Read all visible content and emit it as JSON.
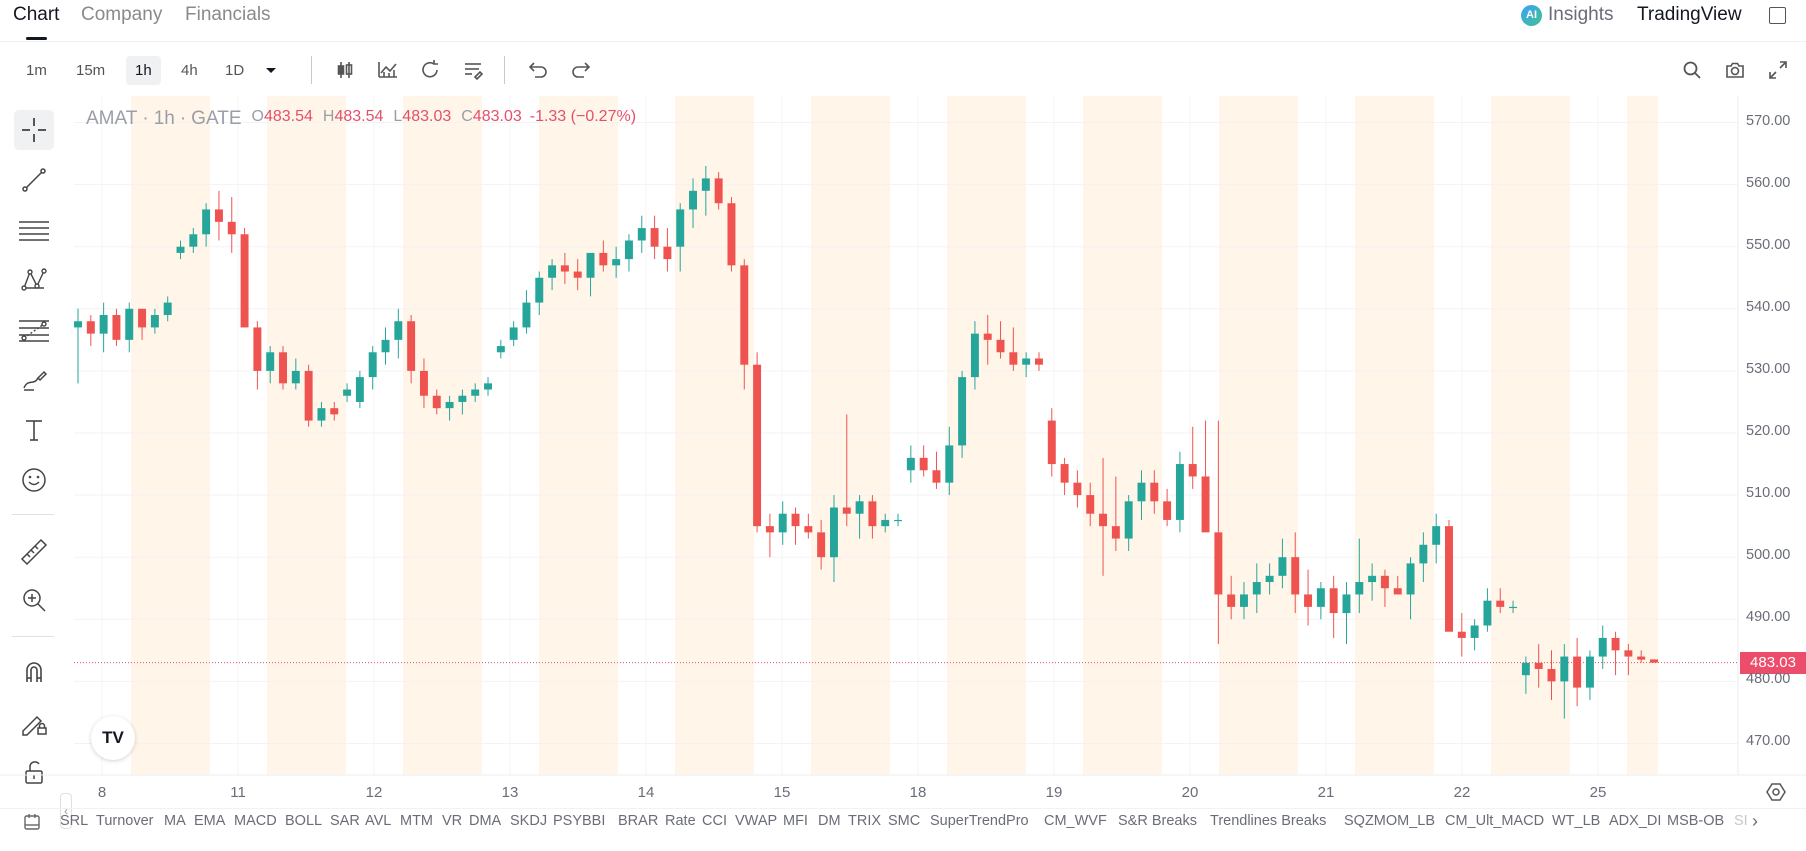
{
  "tabs": [
    {
      "label": "Chart",
      "active": true
    },
    {
      "label": "Company",
      "active": false
    },
    {
      "label": "Financials",
      "active": false
    }
  ],
  "header": {
    "insights_label": "Insights",
    "insights_badge": "AI",
    "tradingview_label": "TradingView"
  },
  "toolbar": {
    "timeframes": [
      {
        "label": "1m",
        "active": false
      },
      {
        "label": "15m",
        "active": false
      },
      {
        "label": "1h",
        "active": true
      },
      {
        "label": "4h",
        "active": false
      },
      {
        "label": "1D",
        "active": false
      }
    ]
  },
  "legend": {
    "symbol": "AMAT",
    "interval": "1h",
    "exchange": "GATE",
    "open_key": "O",
    "open": "483.54",
    "high_key": "H",
    "high": "483.54",
    "low_key": "L",
    "low": "483.03",
    "close_key": "C",
    "close": "483.03",
    "change": "-1.33 (−0.27%)"
  },
  "price_badge": "483.03",
  "colors": {
    "up": "#26a69a",
    "down": "#ef5350",
    "session_shade": "#fff5e9",
    "badge": "#ec4d6a"
  },
  "y_axis_labels": [
    "570.00",
    "560.00",
    "550.00",
    "540.00",
    "530.00",
    "520.00",
    "510.00",
    "500.00",
    "490.00",
    "480.00",
    "470.00"
  ],
  "x_axis_labels": [
    "8",
    "11",
    "12",
    "13",
    "14",
    "15",
    "18",
    "19",
    "20",
    "21",
    "22",
    "25"
  ],
  "tv_logo_text": "TV",
  "indicators": [
    "SRL",
    "Turnover",
    "MA",
    "EMA",
    "MACD",
    "BOLL",
    "SAR",
    "AVL",
    "MTM",
    "VR",
    "DMA",
    "SKDJ",
    "PSY",
    "BBI",
    "BRAR",
    "Rate",
    "CCI",
    "VWAP",
    "MFI",
    "DM",
    "TRIX",
    "SMC",
    "SuperTrendPro",
    "CM_WVF",
    "S&R Breaks",
    "Trendlines Breaks",
    "SQZMOM_LB",
    "CM_Ult_MACD",
    "WT_LB",
    "ADX_DI",
    "MSB-OB",
    "SI"
  ],
  "chart_data": {
    "type": "candlestick",
    "symbol": "AMAT",
    "interval": "1h",
    "ylim": [
      465,
      575
    ],
    "y_ticks": [
      570,
      560,
      550,
      540,
      530,
      520,
      510,
      500,
      490,
      480,
      470
    ],
    "x_labels": [
      "8",
      "11",
      "12",
      "13",
      "14",
      "15",
      "18",
      "19",
      "20",
      "21",
      "22",
      "25"
    ],
    "last_price": 483.03,
    "candles_ohlc": [
      [
        537,
        540,
        528,
        538
      ],
      [
        538,
        539,
        534,
        536
      ],
      [
        536,
        541,
        533,
        539
      ],
      [
        539,
        540,
        534,
        535
      ],
      [
        535,
        541,
        533,
        540
      ],
      [
        540,
        540,
        535,
        537
      ],
      [
        537,
        540,
        536,
        539
      ],
      [
        539,
        542,
        538,
        541
      ],
      [
        549,
        551,
        548,
        550
      ],
      [
        550,
        553,
        549,
        552
      ],
      [
        552,
        557,
        550,
        556
      ],
      [
        556,
        559,
        551,
        554
      ],
      [
        554,
        558,
        549,
        552
      ],
      [
        552,
        553,
        537,
        537
      ],
      [
        537,
        538,
        527,
        530
      ],
      [
        530,
        534,
        528,
        533
      ],
      [
        533,
        534,
        527,
        528
      ],
      [
        528,
        532,
        527,
        530
      ],
      [
        530,
        531,
        521,
        522
      ],
      [
        522,
        525,
        521,
        524
      ],
      [
        524,
        525,
        522,
        523
      ],
      [
        526,
        528,
        525,
        527
      ],
      [
        525,
        530,
        524,
        529
      ],
      [
        529,
        534,
        527,
        533
      ],
      [
        533,
        537,
        531,
        535
      ],
      [
        535,
        540,
        532,
        538
      ],
      [
        538,
        539,
        528,
        530
      ],
      [
        530,
        532,
        524,
        526
      ],
      [
        526,
        527,
        523,
        524
      ],
      [
        524,
        526,
        522,
        525
      ],
      [
        525,
        527,
        523,
        526
      ],
      [
        526,
        528,
        525,
        527
      ],
      [
        527,
        529,
        526,
        528
      ],
      [
        533,
        535,
        532,
        534
      ],
      [
        535,
        538,
        534,
        537
      ],
      [
        537,
        543,
        536,
        541
      ],
      [
        541,
        546,
        539,
        545
      ],
      [
        545,
        548,
        543,
        547
      ],
      [
        547,
        549,
        544,
        546
      ],
      [
        546,
        548,
        543,
        545
      ],
      [
        545,
        548,
        542,
        549
      ],
      [
        549,
        551,
        546,
        547
      ],
      [
        547,
        550,
        545,
        548
      ],
      [
        548,
        552,
        546,
        551
      ],
      [
        551,
        555,
        549,
        553
      ],
      [
        553,
        555,
        548,
        550
      ],
      [
        550,
        553,
        546,
        548
      ],
      [
        550,
        557,
        546,
        556
      ],
      [
        556,
        561,
        553,
        559
      ],
      [
        559,
        563,
        555,
        561
      ],
      [
        561,
        562,
        556,
        557
      ],
      [
        557,
        558,
        546,
        547
      ],
      [
        547,
        548,
        527,
        531
      ],
      [
        531,
        533,
        504,
        505
      ],
      [
        505,
        507,
        500,
        504
      ],
      [
        504,
        509,
        502,
        507
      ],
      [
        507,
        508,
        502,
        505
      ],
      [
        505,
        507,
        503,
        504
      ],
      [
        504,
        506,
        498,
        500
      ],
      [
        500,
        510,
        496,
        508
      ],
      [
        508,
        523,
        505,
        507
      ],
      [
        507,
        510,
        503,
        509
      ],
      [
        509,
        510,
        503,
        505
      ],
      [
        505,
        507,
        504,
        506
      ],
      [
        506,
        507,
        505,
        506
      ],
      [
        514,
        518,
        512,
        516
      ],
      [
        516,
        518,
        513,
        514
      ],
      [
        514,
        517,
        511,
        512
      ],
      [
        512,
        521,
        510,
        518
      ],
      [
        518,
        530,
        516,
        529
      ],
      [
        529,
        538,
        527,
        536
      ],
      [
        536,
        539,
        531,
        535
      ],
      [
        535,
        538,
        532,
        533
      ],
      [
        533,
        537,
        530,
        531
      ],
      [
        531,
        533,
        529,
        532
      ],
      [
        532,
        533,
        530,
        531
      ],
      [
        522,
        524,
        513,
        515
      ],
      [
        515,
        516,
        510,
        512
      ],
      [
        512,
        514,
        508,
        510
      ],
      [
        510,
        512,
        505,
        507
      ],
      [
        507,
        516,
        497,
        505
      ],
      [
        505,
        513,
        501,
        503
      ],
      [
        503,
        510,
        501,
        509
      ],
      [
        509,
        514,
        506,
        512
      ],
      [
        512,
        514,
        507,
        509
      ],
      [
        509,
        511,
        505,
        506
      ],
      [
        506,
        517,
        504,
        515
      ],
      [
        515,
        521,
        511,
        513
      ],
      [
        513,
        522,
        505,
        504
      ],
      [
        504,
        522,
        486,
        494
      ],
      [
        494,
        497,
        490,
        492
      ],
      [
        492,
        496,
        490,
        494
      ],
      [
        494,
        499,
        491,
        496
      ],
      [
        496,
        499,
        494,
        497
      ],
      [
        497,
        503,
        495,
        500
      ],
      [
        500,
        504,
        491,
        494
      ],
      [
        494,
        498,
        489,
        492
      ],
      [
        492,
        496,
        490,
        495
      ],
      [
        495,
        497,
        487,
        491
      ],
      [
        491,
        496,
        486,
        494
      ],
      [
        494,
        503,
        491,
        496
      ],
      [
        496,
        499,
        493,
        497
      ],
      [
        497,
        498,
        492,
        495
      ],
      [
        495,
        497,
        494,
        494
      ],
      [
        494,
        500,
        490,
        499
      ],
      [
        499,
        504,
        496,
        502
      ],
      [
        502,
        507,
        499,
        505
      ],
      [
        505,
        506,
        493,
        488
      ],
      [
        488,
        491,
        484,
        487
      ],
      [
        487,
        490,
        485,
        489
      ],
      [
        489,
        495,
        488,
        493
      ],
      [
        493,
        495,
        491,
        492
      ],
      [
        492,
        493,
        491,
        492
      ],
      [
        481,
        484,
        478,
        483
      ],
      [
        483,
        486,
        479,
        482
      ],
      [
        482,
        485,
        477,
        480
      ],
      [
        480,
        486,
        474,
        484
      ],
      [
        484,
        487,
        476,
        479
      ],
      [
        479,
        485,
        477,
        484
      ],
      [
        484,
        489,
        482,
        487
      ],
      [
        487,
        488,
        481,
        485
      ],
      [
        485,
        486,
        481,
        484
      ],
      [
        484,
        485,
        483,
        483.5
      ],
      [
        483.54,
        483.54,
        483.03,
        483.03
      ]
    ]
  }
}
